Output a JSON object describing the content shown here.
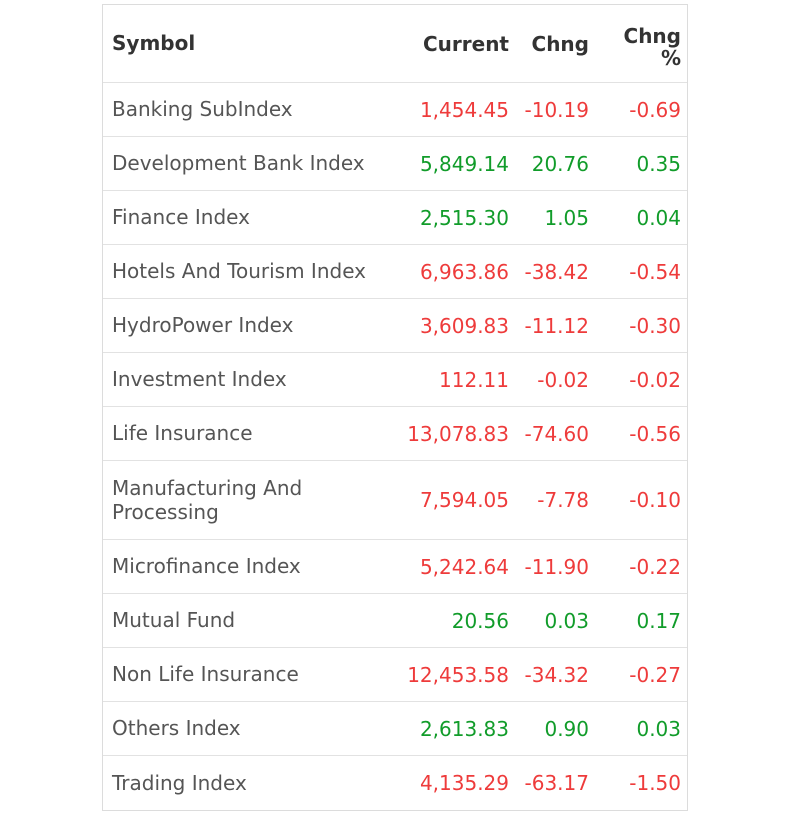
{
  "headers": {
    "symbol": "Symbol",
    "current": "Current",
    "change": "Chng",
    "change_pct_line1": "Chng",
    "change_pct_line2": "%"
  },
  "colors": {
    "up": "#119c2a",
    "down": "#ee3b3b"
  },
  "rows": [
    {
      "symbol": "Banking SubIndex",
      "current": "1,454.45",
      "change": "-10.19",
      "pct": "-0.69",
      "dir": "down"
    },
    {
      "symbol": "Development Bank Index",
      "current": "5,849.14",
      "change": "20.76",
      "pct": "0.35",
      "dir": "up"
    },
    {
      "symbol": "Finance Index",
      "current": "2,515.30",
      "change": "1.05",
      "pct": "0.04",
      "dir": "up"
    },
    {
      "symbol": "Hotels And Tourism Index",
      "current": "6,963.86",
      "change": "-38.42",
      "pct": "-0.54",
      "dir": "down"
    },
    {
      "symbol": "HydroPower Index",
      "current": "3,609.83",
      "change": "-11.12",
      "pct": "-0.30",
      "dir": "down"
    },
    {
      "symbol": "Investment Index",
      "current": "112.11",
      "change": "-0.02",
      "pct": "-0.02",
      "dir": "down"
    },
    {
      "symbol": "Life Insurance",
      "current": "13,078.83",
      "change": "-74.60",
      "pct": "-0.56",
      "dir": "down"
    },
    {
      "symbol": "Manufacturing And Processing",
      "current": "7,594.05",
      "change": "-7.78",
      "pct": "-0.10",
      "dir": "down"
    },
    {
      "symbol": "Microfinance Index",
      "current": "5,242.64",
      "change": "-11.90",
      "pct": "-0.22",
      "dir": "down"
    },
    {
      "symbol": "Mutual Fund",
      "current": "20.56",
      "change": "0.03",
      "pct": "0.17",
      "dir": "up"
    },
    {
      "symbol": "Non Life Insurance",
      "current": "12,453.58",
      "change": "-34.32",
      "pct": "-0.27",
      "dir": "down"
    },
    {
      "symbol": "Others Index",
      "current": "2,613.83",
      "change": "0.90",
      "pct": "0.03",
      "dir": "up"
    },
    {
      "symbol": "Trading Index",
      "current": "4,135.29",
      "change": "-63.17",
      "pct": "-1.50",
      "dir": "down"
    }
  ]
}
